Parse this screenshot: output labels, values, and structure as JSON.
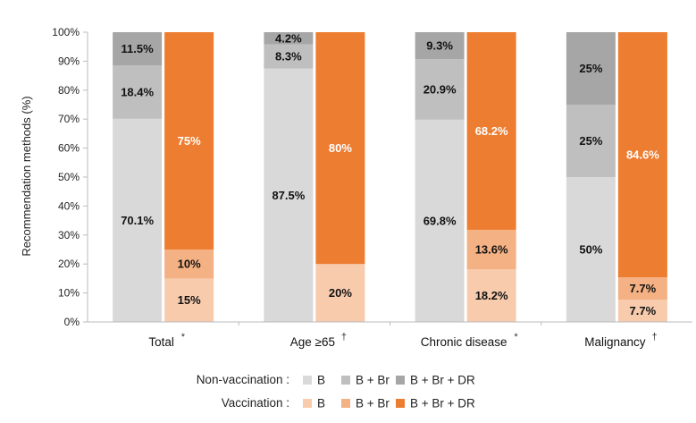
{
  "chart_data": {
    "type": "bar",
    "stacked": true,
    "ylabel": "Recommendation methods (%)",
    "ylim": [
      0,
      100
    ],
    "yticks": [
      "0%",
      "10%",
      "20%",
      "30%",
      "40%",
      "50%",
      "60%",
      "70%",
      "80%",
      "90%",
      "100%"
    ],
    "categories": [
      {
        "label": "Total",
        "mark": "*"
      },
      {
        "label": "Age ≥65",
        "mark": "†"
      },
      {
        "label": "Chronic disease",
        "mark": "*"
      },
      {
        "label": "Malignancy",
        "mark": "†"
      }
    ],
    "groups": [
      {
        "name": "Non-vaccination :",
        "series": [
          {
            "name": "B",
            "color": "#d9d9d9",
            "values": [
              70.1,
              87.5,
              69.8,
              50
            ],
            "labels": [
              "70.1%",
              "87.5%",
              "69.8%",
              "50%"
            ]
          },
          {
            "name": "B + Br",
            "color": "#bfbfbf",
            "values": [
              18.4,
              8.3,
              20.9,
              25
            ],
            "labels": [
              "18.4%",
              "8.3%",
              "20.9%",
              "25%"
            ]
          },
          {
            "name": "B + Br + DR",
            "color": "#a6a6a6",
            "values": [
              11.5,
              4.2,
              9.3,
              25
            ],
            "labels": [
              "11.5%",
              "4.2%",
              "9.3%",
              "25%"
            ]
          }
        ]
      },
      {
        "name": "Vaccination :",
        "series": [
          {
            "name": "B",
            "color": "#f8cbad",
            "values": [
              15,
              20,
              18.2,
              7.7
            ],
            "labels": [
              "15%",
              "20%",
              "18.2%",
              "7.7%"
            ]
          },
          {
            "name": "B + Br",
            "color": "#f4b183",
            "values": [
              10,
              0,
              13.6,
              7.7
            ],
            "labels": [
              "10%",
              "",
              "13.6%",
              "7.7%"
            ]
          },
          {
            "name": "B + Br + DR",
            "color": "#ed7d31",
            "values": [
              75,
              80,
              68.2,
              84.6
            ],
            "labels": [
              "75%",
              "80%",
              "68.2%",
              "84.6%"
            ]
          }
        ]
      }
    ],
    "grid": false,
    "legend_position": "bottom"
  }
}
